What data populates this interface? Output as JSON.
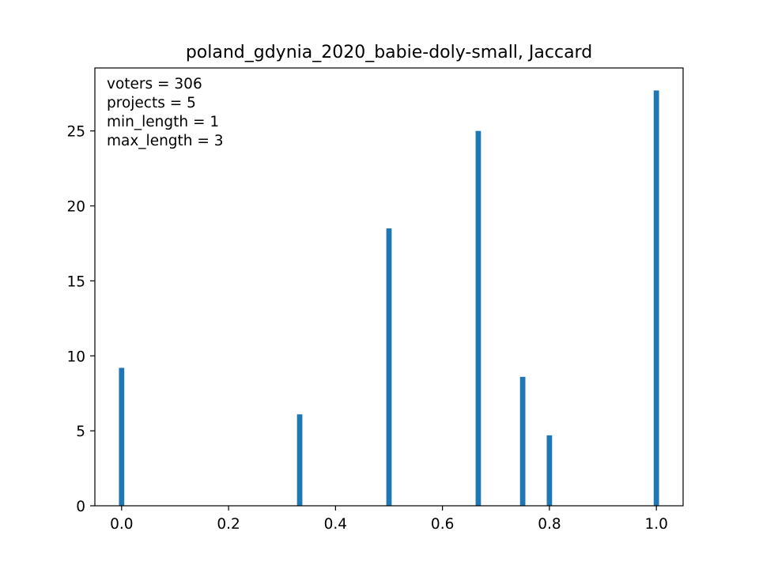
{
  "chart_data": {
    "type": "bar",
    "title": "poland_gdynia_2020_babie-doly-small, Jaccard",
    "xlabel": "",
    "ylabel": "",
    "xlim": [
      -0.05,
      1.05
    ],
    "ylim": [
      0,
      29.2
    ],
    "x_ticks": [
      0.0,
      0.2,
      0.4,
      0.6,
      0.8,
      1.0
    ],
    "x_tick_labels": [
      "0.0",
      "0.2",
      "0.4",
      "0.6",
      "0.8",
      "1.0"
    ],
    "y_ticks": [
      0,
      5,
      10,
      15,
      20,
      25
    ],
    "y_tick_labels": [
      "0",
      "5",
      "10",
      "15",
      "20",
      "25"
    ],
    "bar_width": 0.01,
    "bar_color": "#1f77b4",
    "grid": false,
    "bars": [
      {
        "x": 0.0,
        "value": 9.2
      },
      {
        "x": 0.333,
        "value": 6.1
      },
      {
        "x": 0.5,
        "value": 18.5
      },
      {
        "x": 0.667,
        "value": 25.0
      },
      {
        "x": 0.75,
        "value": 8.6
      },
      {
        "x": 0.8,
        "value": 4.7
      },
      {
        "x": 1.0,
        "value": 27.7
      }
    ],
    "annotations": [
      "voters = 306",
      "projects = 5",
      "min_length = 1",
      "max_length = 3"
    ]
  }
}
